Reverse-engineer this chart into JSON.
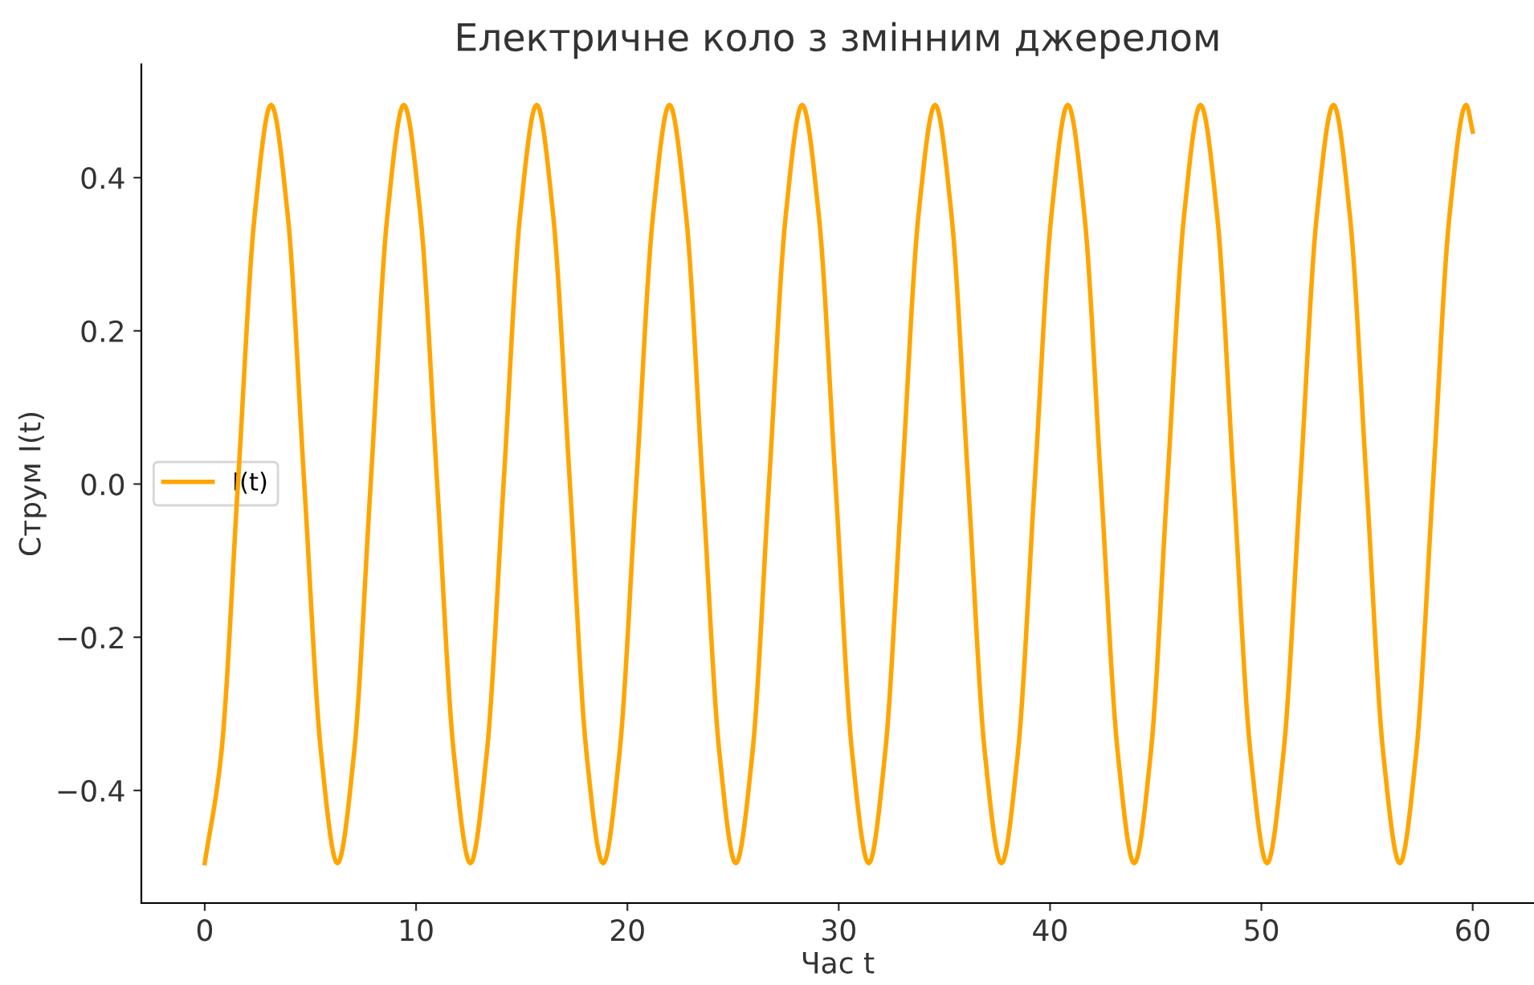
{
  "chart_data": {
    "type": "line",
    "title": "Електричне коло з змінним джерелом",
    "xlabel": "Час t",
    "ylabel": "Струм I(t)",
    "xlim": [
      -3,
      62.9
    ],
    "ylim": [
      -0.547,
      0.548
    ],
    "xticks": [
      0,
      10,
      20,
      30,
      40,
      50,
      60
    ],
    "yticks": [
      {
        "value": -0.4,
        "label": "−0.4"
      },
      {
        "value": -0.2,
        "label": "−0.2"
      },
      {
        "value": 0,
        "label": "0.0"
      },
      0.2,
      0.4
    ],
    "grid": false,
    "legend": "left",
    "marker": "none",
    "line_style": "solid",
    "series": [
      {
        "name": "I(t)",
        "color": "#ffa500",
        "x": [
          0,
          0.79,
          1.57,
          2.36,
          3.14,
          3.93,
          4.71,
          5.5,
          6.28,
          7.07,
          7.85,
          8.64,
          9.42,
          10.21,
          11.0,
          11.78,
          12.57,
          13.35,
          14.14,
          14.92,
          15.71,
          16.49,
          17.28,
          18.06,
          18.85,
          19.63,
          20.42,
          21.21,
          21.99,
          22.78,
          23.56,
          24.35,
          25.13,
          25.92,
          26.7,
          27.49,
          28.27,
          29.06,
          29.85,
          30.63,
          31.42,
          32.2,
          32.99,
          33.77,
          34.56,
          35.34,
          36.13,
          36.91,
          37.7,
          38.48,
          39.27,
          40.06,
          40.84,
          41.63,
          42.41,
          43.2,
          43.98,
          44.77,
          45.55,
          46.34,
          47.12,
          47.91,
          48.69,
          49.48,
          50.27,
          51.05,
          51.84,
          52.62,
          53.41,
          54.19,
          54.98,
          55.76,
          56.55,
          57.33,
          58.12,
          58.9,
          59.69,
          60
        ],
        "values": [
          -0.495,
          -0.35,
          0,
          0.35,
          0.495,
          0.35,
          0,
          -0.35,
          -0.495,
          -0.35,
          0,
          0.35,
          0.495,
          0.35,
          0,
          -0.35,
          -0.495,
          -0.35,
          0,
          0.35,
          0.495,
          0.35,
          0,
          -0.35,
          -0.495,
          -0.35,
          0,
          0.35,
          0.495,
          0.35,
          0,
          -0.35,
          -0.495,
          -0.35,
          0,
          0.35,
          0.495,
          0.35,
          0,
          -0.35,
          -0.495,
          -0.35,
          0,
          0.35,
          0.495,
          0.35,
          0,
          -0.35,
          -0.495,
          -0.35,
          0,
          0.35,
          0.495,
          0.35,
          0,
          -0.35,
          -0.495,
          -0.35,
          0,
          0.35,
          0.495,
          0.35,
          0,
          -0.35,
          -0.495,
          -0.35,
          0,
          0.35,
          0.495,
          0.35,
          0,
          -0.35,
          -0.495,
          -0.35,
          0,
          0.35,
          0.495,
          0.46
        ]
      }
    ]
  }
}
